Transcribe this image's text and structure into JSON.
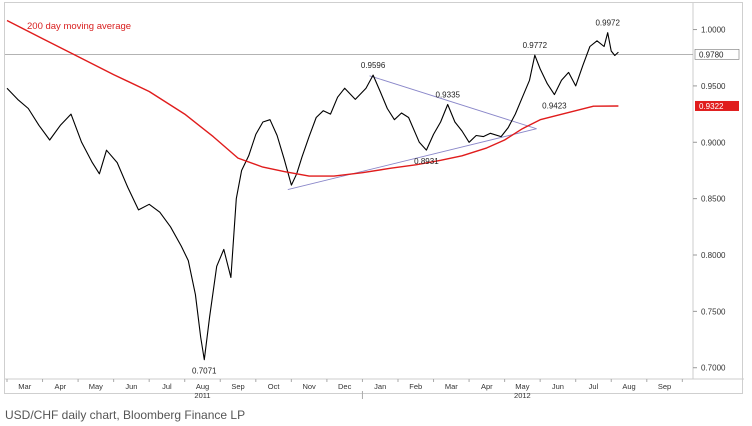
{
  "caption": "USD/CHF daily chart, Bloomberg Finance LP",
  "colors": {
    "price": "#000000",
    "ma": "#e01c1c",
    "trendline": "#8a87c9",
    "refline": "#9a9a9a",
    "axis_text": "#333333"
  },
  "chart_data": {
    "type": "line",
    "title": "",
    "xlabel": "",
    "ylabel": "",
    "ylim": [
      0.69,
      1.02
    ],
    "y_ticks": [
      {
        "value": 0.7,
        "label": "0.7000"
      },
      {
        "value": 0.75,
        "label": "0.7500"
      },
      {
        "value": 0.8,
        "label": "0.8000"
      },
      {
        "value": 0.85,
        "label": "0.8500"
      },
      {
        "value": 0.9,
        "label": "0.9000"
      },
      {
        "value": 0.95,
        "label": "0.9500"
      },
      {
        "value": 1.0,
        "label": "1.0000"
      }
    ],
    "x_ticks": [
      {
        "t": 0.5,
        "label": "Mar"
      },
      {
        "t": 1.5,
        "label": "Apr"
      },
      {
        "t": 2.5,
        "label": "May"
      },
      {
        "t": 3.5,
        "label": "Jun"
      },
      {
        "t": 4.5,
        "label": "Jul"
      },
      {
        "t": 5.5,
        "label": "Aug"
      },
      {
        "t": 6.5,
        "label": "Sep"
      },
      {
        "t": 7.5,
        "label": "Oct"
      },
      {
        "t": 8.5,
        "label": "Nov"
      },
      {
        "t": 9.5,
        "label": "Dec"
      },
      {
        "t": 10.5,
        "label": "Jan"
      },
      {
        "t": 11.5,
        "label": "Feb"
      },
      {
        "t": 12.5,
        "label": "Mar"
      },
      {
        "t": 13.5,
        "label": "Apr"
      },
      {
        "t": 14.5,
        "label": "May"
      },
      {
        "t": 15.5,
        "label": "Jun"
      },
      {
        "t": 16.5,
        "label": "Jul"
      },
      {
        "t": 17.5,
        "label": "Aug"
      },
      {
        "t": 18.5,
        "label": "Sep"
      }
    ],
    "year_labels": [
      {
        "t": 5.5,
        "label": "2011"
      },
      {
        "t": 14.5,
        "label": "2012"
      }
    ],
    "x_domain": [
      0,
      19.3
    ],
    "series": [
      {
        "name": "USD/CHF",
        "kind": "price",
        "points": [
          [
            0.0,
            0.948
          ],
          [
            0.3,
            0.938
          ],
          [
            0.6,
            0.93
          ],
          [
            0.9,
            0.915
          ],
          [
            1.2,
            0.902
          ],
          [
            1.5,
            0.915
          ],
          [
            1.8,
            0.925
          ],
          [
            2.1,
            0.9
          ],
          [
            2.4,
            0.882
          ],
          [
            2.6,
            0.872
          ],
          [
            2.8,
            0.893
          ],
          [
            3.1,
            0.882
          ],
          [
            3.4,
            0.86
          ],
          [
            3.7,
            0.84
          ],
          [
            4.0,
            0.845
          ],
          [
            4.3,
            0.838
          ],
          [
            4.6,
            0.825
          ],
          [
            4.9,
            0.808
          ],
          [
            5.1,
            0.795
          ],
          [
            5.3,
            0.765
          ],
          [
            5.45,
            0.727
          ],
          [
            5.55,
            0.7071
          ],
          [
            5.7,
            0.745
          ],
          [
            5.9,
            0.79
          ],
          [
            6.1,
            0.805
          ],
          [
            6.3,
            0.78
          ],
          [
            6.45,
            0.85
          ],
          [
            6.6,
            0.875
          ],
          [
            6.8,
            0.888
          ],
          [
            7.0,
            0.907
          ],
          [
            7.2,
            0.918
          ],
          [
            7.4,
            0.92
          ],
          [
            7.6,
            0.906
          ],
          [
            7.8,
            0.885
          ],
          [
            8.0,
            0.862
          ],
          [
            8.15,
            0.872
          ],
          [
            8.3,
            0.887
          ],
          [
            8.5,
            0.905
          ],
          [
            8.7,
            0.922
          ],
          [
            8.9,
            0.928
          ],
          [
            9.1,
            0.925
          ],
          [
            9.3,
            0.94
          ],
          [
            9.5,
            0.948
          ],
          [
            9.8,
            0.938
          ],
          [
            10.1,
            0.948
          ],
          [
            10.3,
            0.9596
          ],
          [
            10.5,
            0.945
          ],
          [
            10.7,
            0.93
          ],
          [
            10.9,
            0.92
          ],
          [
            11.1,
            0.926
          ],
          [
            11.3,
            0.922
          ],
          [
            11.6,
            0.9
          ],
          [
            11.8,
            0.8931
          ],
          [
            12.0,
            0.907
          ],
          [
            12.2,
            0.918
          ],
          [
            12.4,
            0.9335
          ],
          [
            12.6,
            0.918
          ],
          [
            12.8,
            0.91
          ],
          [
            13.0,
            0.9
          ],
          [
            13.2,
            0.906
          ],
          [
            13.4,
            0.905
          ],
          [
            13.6,
            0.908
          ],
          [
            13.9,
            0.905
          ],
          [
            14.1,
            0.913
          ],
          [
            14.3,
            0.925
          ],
          [
            14.5,
            0.94
          ],
          [
            14.7,
            0.955
          ],
          [
            14.85,
            0.9772
          ],
          [
            15.0,
            0.965
          ],
          [
            15.2,
            0.952
          ],
          [
            15.4,
            0.9423
          ],
          [
            15.6,
            0.955
          ],
          [
            15.8,
            0.962
          ],
          [
            16.0,
            0.95
          ],
          [
            16.2,
            0.968
          ],
          [
            16.4,
            0.985
          ],
          [
            16.6,
            0.99
          ],
          [
            16.8,
            0.985
          ],
          [
            16.9,
            0.9972
          ],
          [
            17.0,
            0.981
          ],
          [
            17.1,
            0.977
          ],
          [
            17.2,
            0.98
          ]
        ]
      },
      {
        "name": "200 day moving average",
        "kind": "ma",
        "points": [
          [
            0.0,
            1.008
          ],
          [
            1.0,
            0.992
          ],
          [
            2.0,
            0.976
          ],
          [
            3.0,
            0.96
          ],
          [
            4.0,
            0.945
          ],
          [
            5.0,
            0.925
          ],
          [
            5.8,
            0.905
          ],
          [
            6.5,
            0.886
          ],
          [
            7.2,
            0.878
          ],
          [
            7.8,
            0.874
          ],
          [
            8.5,
            0.87
          ],
          [
            9.2,
            0.87
          ],
          [
            10.0,
            0.873
          ],
          [
            10.8,
            0.877
          ],
          [
            11.5,
            0.88
          ],
          [
            12.2,
            0.884
          ],
          [
            12.8,
            0.888
          ],
          [
            13.5,
            0.895
          ],
          [
            14.0,
            0.902
          ],
          [
            14.5,
            0.912
          ],
          [
            15.0,
            0.92
          ],
          [
            15.5,
            0.924
          ],
          [
            16.0,
            0.928
          ],
          [
            16.5,
            0.932
          ],
          [
            17.2,
            0.9322
          ]
        ]
      }
    ],
    "trendlines": [
      {
        "points": [
          [
            7.9,
            0.858
          ],
          [
            14.9,
            0.912
          ]
        ]
      },
      {
        "points": [
          [
            10.2,
            0.959
          ],
          [
            14.9,
            0.912
          ]
        ]
      }
    ],
    "reference_lines": [
      {
        "value": 0.978,
        "label": "0.9780"
      }
    ],
    "last_value_tags": [
      {
        "value": 0.9322,
        "label": "0.9322",
        "color": "#e01c1c"
      }
    ],
    "annotations": [
      {
        "x": 5.55,
        "y": 0.7071,
        "label": "0.7071",
        "position": "below"
      },
      {
        "x": 10.3,
        "y": 0.9596,
        "label": "0.9596",
        "position": "above"
      },
      {
        "x": 12.4,
        "y": 0.9335,
        "label": "0.9335",
        "position": "above"
      },
      {
        "x": 11.8,
        "y": 0.8931,
        "label": "0.8931",
        "position": "below"
      },
      {
        "x": 14.85,
        "y": 0.9772,
        "label": "0.9772",
        "position": "above"
      },
      {
        "x": 15.4,
        "y": 0.9423,
        "label": "0.9423",
        "position": "below"
      },
      {
        "x": 16.9,
        "y": 0.9972,
        "label": "0.9972",
        "position": "above"
      }
    ],
    "legend": [
      {
        "label": "200 day moving average",
        "color": "#e01c1c",
        "placement": "top-left"
      }
    ],
    "grid": false
  }
}
